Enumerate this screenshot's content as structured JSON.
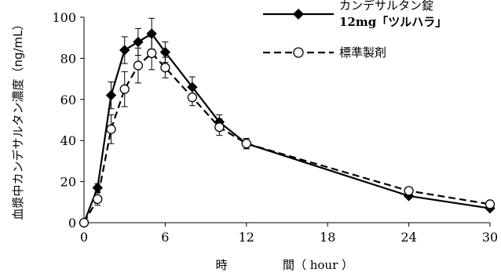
{
  "chart_data": {
    "type": "line",
    "xlabel_parts": [
      "時",
      "間（ hour ）"
    ],
    "ylabel": "血漿中カンデサルタン濃度（ng/mL）",
    "xlim": [
      0,
      30
    ],
    "ylim": [
      0,
      100
    ],
    "x_ticks": [
      0,
      6,
      12,
      18,
      24,
      30
    ],
    "y_ticks": [
      0,
      20,
      40,
      60,
      80,
      100
    ],
    "grid": false,
    "legend_position": "top-right",
    "series": [
      {
        "name_lines": [
          "カンデサルタン錠",
          "12mg「ツルハラ」"
        ],
        "marker": "filled-diamond",
        "line_style": "solid",
        "color": "#000000",
        "x": [
          0,
          1,
          2,
          3,
          4,
          5,
          6,
          8,
          10,
          12,
          24,
          30
        ],
        "y": [
          0,
          17,
          62,
          84,
          88,
          92,
          83,
          66,
          49,
          38.5,
          13,
          7
        ],
        "error": [
          0,
          2,
          6.5,
          6.5,
          6.5,
          7.5,
          5,
          5,
          3.5,
          2.5,
          1,
          0.8
        ]
      },
      {
        "name_lines": [
          "標準製剤"
        ],
        "marker": "open-circle",
        "line_style": "dashed",
        "color": "#000000",
        "x": [
          0,
          1,
          2,
          3,
          4,
          5,
          6,
          8,
          10,
          12,
          24,
          30
        ],
        "y": [
          0,
          11.5,
          45.5,
          65,
          76.5,
          82.5,
          75.5,
          61,
          46.5,
          38.5,
          15.5,
          9
        ],
        "error": [
          0,
          3,
          7,
          8.5,
          8.5,
          8,
          5,
          4,
          4,
          2.5,
          1,
          0.8
        ]
      }
    ]
  }
}
